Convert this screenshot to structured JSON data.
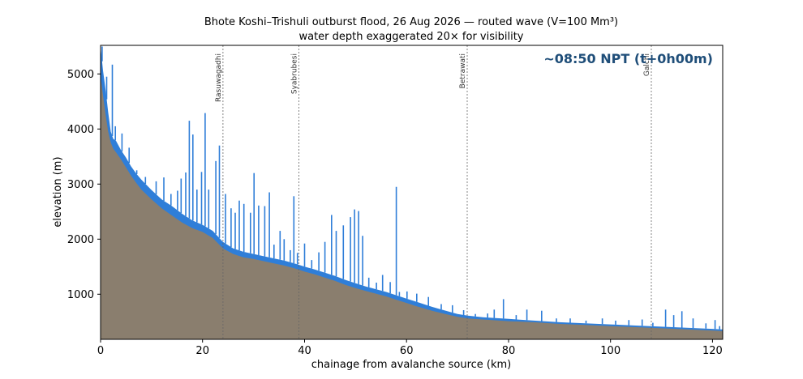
{
  "chart_data": {
    "type": "area",
    "title": "Bhote Koshi–Trishuli outburst flood, 26 Aug 2026 — routed wave (V=100 Mm³)",
    "subtitle": "water depth exaggerated 20× for visibility",
    "xlabel": "chainage from avalanche source (km)",
    "ylabel": "elevation (m)",
    "xlim": [
      0,
      122
    ],
    "ylim": [
      180,
      5520
    ],
    "x_ticks": [
      0,
      20,
      40,
      60,
      80,
      100,
      120
    ],
    "y_ticks": [
      1000,
      2000,
      3000,
      4000,
      5000
    ],
    "grid": false,
    "annotation": "~08:50 NPT  (t+0h00m)",
    "markers": [
      {
        "label": "Rasuwagadhi",
        "x": 24.0
      },
      {
        "label": "Syabrubesi",
        "x": 38.9
      },
      {
        "label": "Betrawati",
        "x": 71.9
      },
      {
        "label": "Galchi",
        "x": 108.0
      }
    ],
    "bed_profile": {
      "x": [
        0,
        0.5,
        1,
        1.5,
        2,
        2.5,
        3,
        4,
        5,
        6,
        7,
        8,
        10,
        12,
        14,
        16,
        18,
        20,
        22,
        24,
        26,
        28,
        30,
        32,
        34,
        36,
        38,
        40,
        42,
        44,
        46,
        48,
        50,
        52,
        54,
        56,
        58,
        60,
        62,
        65,
        68,
        70,
        72,
        75,
        80,
        85,
        90,
        95,
        100,
        105,
        110,
        115,
        120,
        122
      ],
      "y": [
        4950,
        4600,
        4250,
        3950,
        3750,
        3640,
        3580,
        3450,
        3300,
        3150,
        3020,
        2900,
        2720,
        2560,
        2430,
        2300,
        2200,
        2130,
        2020,
        1830,
        1730,
        1670,
        1640,
        1600,
        1560,
        1520,
        1470,
        1410,
        1360,
        1300,
        1240,
        1170,
        1110,
        1060,
        1010,
        960,
        900,
        840,
        780,
        700,
        630,
        590,
        560,
        540,
        510,
        490,
        460,
        440,
        420,
        400,
        380,
        360,
        340,
        330
      ]
    },
    "water_surface": {
      "x": [
        0,
        0.5,
        1,
        1.5,
        2,
        2.5,
        3,
        4,
        5,
        6,
        7,
        8,
        10,
        12,
        14,
        16,
        18,
        20,
        22,
        24,
        26,
        28,
        30,
        32,
        34,
        36,
        38,
        40,
        42,
        44,
        46,
        48,
        50,
        52,
        54,
        56,
        58,
        60,
        62,
        65,
        68,
        70,
        72,
        75,
        80,
        85,
        90,
        95,
        100,
        105,
        110,
        115,
        120,
        122
      ],
      "y": [
        5500,
        5050,
        4700,
        4300,
        3950,
        3820,
        3790,
        3620,
        3480,
        3320,
        3190,
        3080,
        2890,
        2720,
        2600,
        2460,
        2340,
        2260,
        2150,
        1950,
        1830,
        1770,
        1730,
        1690,
        1650,
        1610,
        1560,
        1500,
        1450,
        1390,
        1330,
        1260,
        1200,
        1140,
        1090,
        1040,
        980,
        920,
        860,
        770,
        690,
        640,
        610,
        580,
        550,
        520,
        490,
        470,
        450,
        430,
        410,
        390,
        370,
        360
      ]
    },
    "wave_spikes": [
      {
        "x": 0.3,
        "y": 5500
      },
      {
        "x": 1.2,
        "y": 4950
      },
      {
        "x": 2.3,
        "y": 5170
      },
      {
        "x": 2.9,
        "y": 4050
      },
      {
        "x": 4.2,
        "y": 3920
      },
      {
        "x": 5.6,
        "y": 3660
      },
      {
        "x": 7.1,
        "y": 3250
      },
      {
        "x": 8.8,
        "y": 3130
      },
      {
        "x": 10.9,
        "y": 3050
      },
      {
        "x": 12.4,
        "y": 3120
      },
      {
        "x": 13.8,
        "y": 2820
      },
      {
        "x": 15.1,
        "y": 2880
      },
      {
        "x": 15.8,
        "y": 3100
      },
      {
        "x": 16.7,
        "y": 3210
      },
      {
        "x": 17.4,
        "y": 4150
      },
      {
        "x": 18.1,
        "y": 3900
      },
      {
        "x": 18.9,
        "y": 2900
      },
      {
        "x": 19.8,
        "y": 3220
      },
      {
        "x": 20.5,
        "y": 4290
      },
      {
        "x": 21.2,
        "y": 2900
      },
      {
        "x": 22.6,
        "y": 3420
      },
      {
        "x": 23.3,
        "y": 3700
      },
      {
        "x": 24.5,
        "y": 2820
      },
      {
        "x": 25.6,
        "y": 2560
      },
      {
        "x": 26.4,
        "y": 2480
      },
      {
        "x": 27.2,
        "y": 2700
      },
      {
        "x": 28.1,
        "y": 2640
      },
      {
        "x": 29.4,
        "y": 2480
      },
      {
        "x": 30.1,
        "y": 3200
      },
      {
        "x": 31.0,
        "y": 2610
      },
      {
        "x": 32.2,
        "y": 2600
      },
      {
        "x": 33.1,
        "y": 2850
      },
      {
        "x": 34.0,
        "y": 1900
      },
      {
        "x": 35.2,
        "y": 2150
      },
      {
        "x": 36.0,
        "y": 2000
      },
      {
        "x": 37.2,
        "y": 1800
      },
      {
        "x": 37.9,
        "y": 2780
      },
      {
        "x": 38.6,
        "y": 1750
      },
      {
        "x": 40.0,
        "y": 1920
      },
      {
        "x": 41.4,
        "y": 1620
      },
      {
        "x": 42.8,
        "y": 1760
      },
      {
        "x": 44.0,
        "y": 1950
      },
      {
        "x": 45.3,
        "y": 2440
      },
      {
        "x": 46.2,
        "y": 2150
      },
      {
        "x": 47.6,
        "y": 2250
      },
      {
        "x": 49.0,
        "y": 2400
      },
      {
        "x": 49.8,
        "y": 2540
      },
      {
        "x": 50.6,
        "y": 2510
      },
      {
        "x": 51.4,
        "y": 2060
      },
      {
        "x": 52.6,
        "y": 1300
      },
      {
        "x": 54.1,
        "y": 1210
      },
      {
        "x": 55.3,
        "y": 1350
      },
      {
        "x": 56.8,
        "y": 1220
      },
      {
        "x": 58.0,
        "y": 2950
      },
      {
        "x": 58.6,
        "y": 1040
      },
      {
        "x": 60.1,
        "y": 1050
      },
      {
        "x": 62.0,
        "y": 1010
      },
      {
        "x": 64.3,
        "y": 950
      },
      {
        "x": 66.8,
        "y": 820
      },
      {
        "x": 69.0,
        "y": 800
      },
      {
        "x": 71.2,
        "y": 710
      },
      {
        "x": 73.5,
        "y": 640
      },
      {
        "x": 75.9,
        "y": 650
      },
      {
        "x": 77.2,
        "y": 720
      },
      {
        "x": 79.0,
        "y": 910
      },
      {
        "x": 81.5,
        "y": 620
      },
      {
        "x": 83.6,
        "y": 720
      },
      {
        "x": 86.5,
        "y": 700
      },
      {
        "x": 89.4,
        "y": 560
      },
      {
        "x": 92.1,
        "y": 560
      },
      {
        "x": 95.2,
        "y": 520
      },
      {
        "x": 98.4,
        "y": 560
      },
      {
        "x": 101.0,
        "y": 520
      },
      {
        "x": 103.6,
        "y": 530
      },
      {
        "x": 106.2,
        "y": 540
      },
      {
        "x": 108.3,
        "y": 480
      },
      {
        "x": 110.8,
        "y": 720
      },
      {
        "x": 112.4,
        "y": 620
      },
      {
        "x": 114.0,
        "y": 690
      },
      {
        "x": 116.2,
        "y": 560
      },
      {
        "x": 118.7,
        "y": 470
      },
      {
        "x": 120.5,
        "y": 530
      },
      {
        "x": 121.4,
        "y": 420
      }
    ],
    "colors": {
      "bed": "#8a7e6e",
      "water": "#2f7ed8",
      "marker_line": "#666666",
      "annotation": "#1f4e79"
    }
  }
}
